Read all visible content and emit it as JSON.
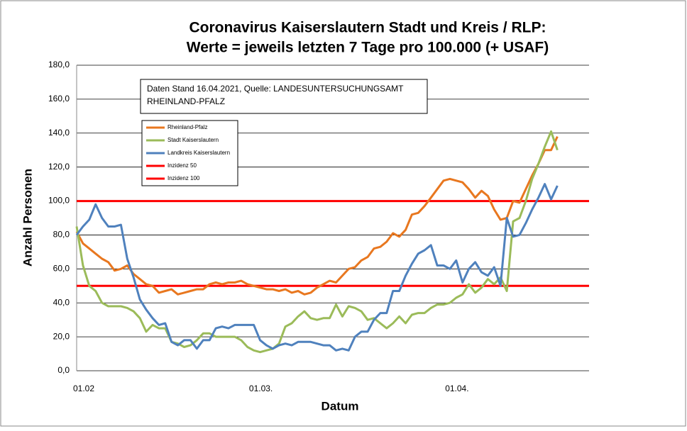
{
  "chart_data": {
    "type": "line",
    "title": [
      "Coronavirus Kaiserslautern Stadt und Kreis / RLP:",
      "Werte = jeweils letzten 7 Tage pro 100.000 (+ USAF)"
    ],
    "annotation": [
      "Daten Stand 16.04.2021, Quelle: LANDESUNTERSUCHUNGSAMT",
      "RHEINLAND-PFALZ"
    ],
    "xlabel": "Datum",
    "ylabel": "Anzahl Personen",
    "categories": [
      "01.02",
      null,
      null,
      null,
      null,
      null,
      null,
      null,
      null,
      null,
      null,
      null,
      null,
      null,
      null,
      null,
      null,
      null,
      null,
      null,
      null,
      null,
      null,
      null,
      null,
      null,
      null,
      null,
      "01.03.",
      null,
      null,
      null,
      null,
      null,
      null,
      null,
      null,
      null,
      null,
      null,
      null,
      null,
      null,
      null,
      null,
      null,
      null,
      null,
      null,
      null,
      null,
      null,
      null,
      null,
      null,
      null,
      null,
      null,
      null,
      "01.04.",
      null,
      null,
      null,
      null,
      null,
      null,
      null,
      null,
      null,
      null,
      null,
      null,
      null,
      null,
      null,
      null,
      null,
      null,
      null,
      null,
      null,
      null
    ],
    "ylim": [
      0,
      180
    ],
    "yticks": [
      {
        "value": 0,
        "label": "0,0"
      },
      {
        "value": 20,
        "label": "20,0"
      },
      {
        "value": 40,
        "label": "40,0"
      },
      {
        "value": 60,
        "label": "60,0"
      },
      {
        "value": 80,
        "label": "80,0"
      },
      {
        "value": 100,
        "label": "100,0"
      },
      {
        "value": 120,
        "label": "120,0"
      },
      {
        "value": 140,
        "label": "140,0"
      },
      {
        "value": 160,
        "label": "160,0"
      },
      {
        "value": 180,
        "label": "180,0"
      }
    ],
    "grid": true,
    "series": [
      {
        "name": "Rheinland-Pfalz",
        "color": "#e8771f",
        "values": [
          82,
          75,
          72,
          69,
          66,
          64,
          59,
          60,
          62,
          57,
          54,
          51,
          50,
          46,
          47,
          48,
          45,
          46,
          47,
          48,
          48,
          51,
          52,
          51,
          52,
          52,
          53,
          51,
          50,
          49,
          48,
          48,
          47,
          48,
          46,
          47,
          45,
          46,
          49,
          51,
          53,
          52,
          56,
          60,
          61,
          65,
          67,
          72,
          73,
          76,
          81,
          79,
          83,
          92,
          93,
          97,
          102,
          107,
          112,
          113,
          112,
          111,
          107,
          102,
          106,
          103,
          95,
          89,
          90,
          100,
          99,
          107,
          115,
          122,
          130,
          130,
          138,
          null,
          null,
          null,
          null,
          null
        ]
      },
      {
        "name": "Stadt Kaiserslautern",
        "color": "#9bbb59",
        "values": [
          85,
          62,
          50,
          47,
          40,
          38,
          38,
          38,
          37,
          35,
          31,
          23,
          27,
          25,
          25,
          17,
          16,
          14,
          15,
          18,
          22,
          22,
          20,
          20,
          20,
          20,
          18,
          14,
          12,
          11,
          12,
          13,
          16,
          26,
          28,
          32,
          35,
          31,
          30,
          31,
          31,
          39,
          32,
          38,
          37,
          35,
          30,
          31,
          28,
          25,
          28,
          32,
          28,
          33,
          34,
          34,
          37,
          39,
          39,
          40,
          43,
          45,
          51,
          46,
          49,
          54,
          51,
          55,
          47,
          88,
          90,
          100,
          113,
          122,
          132,
          141,
          130,
          null,
          null,
          null,
          null,
          null
        ]
      },
      {
        "name": "Landkreis Kaiserslautern",
        "color": "#4f81bd",
        "values": [
          80,
          85,
          89,
          98,
          90,
          85,
          85,
          86,
          66,
          55,
          42,
          36,
          31,
          27,
          28,
          17,
          15,
          18,
          18,
          13,
          18,
          18,
          25,
          26,
          25,
          27,
          27,
          27,
          27,
          18,
          15,
          13,
          15,
          16,
          15,
          17,
          17,
          17,
          16,
          15,
          15,
          12,
          13,
          12,
          20,
          23,
          23,
          30,
          34,
          34,
          47,
          47,
          56,
          63,
          69,
          71,
          74,
          62,
          62,
          60,
          65,
          52,
          60,
          64,
          58,
          56,
          61,
          50,
          90,
          79,
          80,
          87,
          95,
          102,
          110,
          101,
          109,
          null,
          null,
          null,
          null,
          null
        ]
      },
      {
        "name": "Inzidenz 50",
        "color": "#ff0000",
        "values": [
          50,
          50,
          50,
          50,
          50,
          50,
          50,
          50,
          50,
          50,
          50,
          50,
          50,
          50,
          50,
          50,
          50,
          50,
          50,
          50,
          50,
          50,
          50,
          50,
          50,
          50,
          50,
          50,
          50,
          50,
          50,
          50,
          50,
          50,
          50,
          50,
          50,
          50,
          50,
          50,
          50,
          50,
          50,
          50,
          50,
          50,
          50,
          50,
          50,
          50,
          50,
          50,
          50,
          50,
          50,
          50,
          50,
          50,
          50,
          50,
          50,
          50,
          50,
          50,
          50,
          50,
          50,
          50,
          50,
          50,
          50,
          50,
          50,
          50,
          50,
          50,
          50,
          50,
          50,
          50,
          50,
          50
        ]
      },
      {
        "name": "Inzidenz 100",
        "color": "#ff0000",
        "values": [
          100,
          100,
          100,
          100,
          100,
          100,
          100,
          100,
          100,
          100,
          100,
          100,
          100,
          100,
          100,
          100,
          100,
          100,
          100,
          100,
          100,
          100,
          100,
          100,
          100,
          100,
          100,
          100,
          100,
          100,
          100,
          100,
          100,
          100,
          100,
          100,
          100,
          100,
          100,
          100,
          100,
          100,
          100,
          100,
          100,
          100,
          100,
          100,
          100,
          100,
          100,
          100,
          100,
          100,
          100,
          100,
          100,
          100,
          100,
          100,
          100,
          100,
          100,
          100,
          100,
          100,
          100,
          100,
          100,
          100,
          100,
          100,
          100,
          100,
          100,
          100,
          100,
          100,
          100,
          100,
          100,
          100
        ]
      }
    ]
  }
}
